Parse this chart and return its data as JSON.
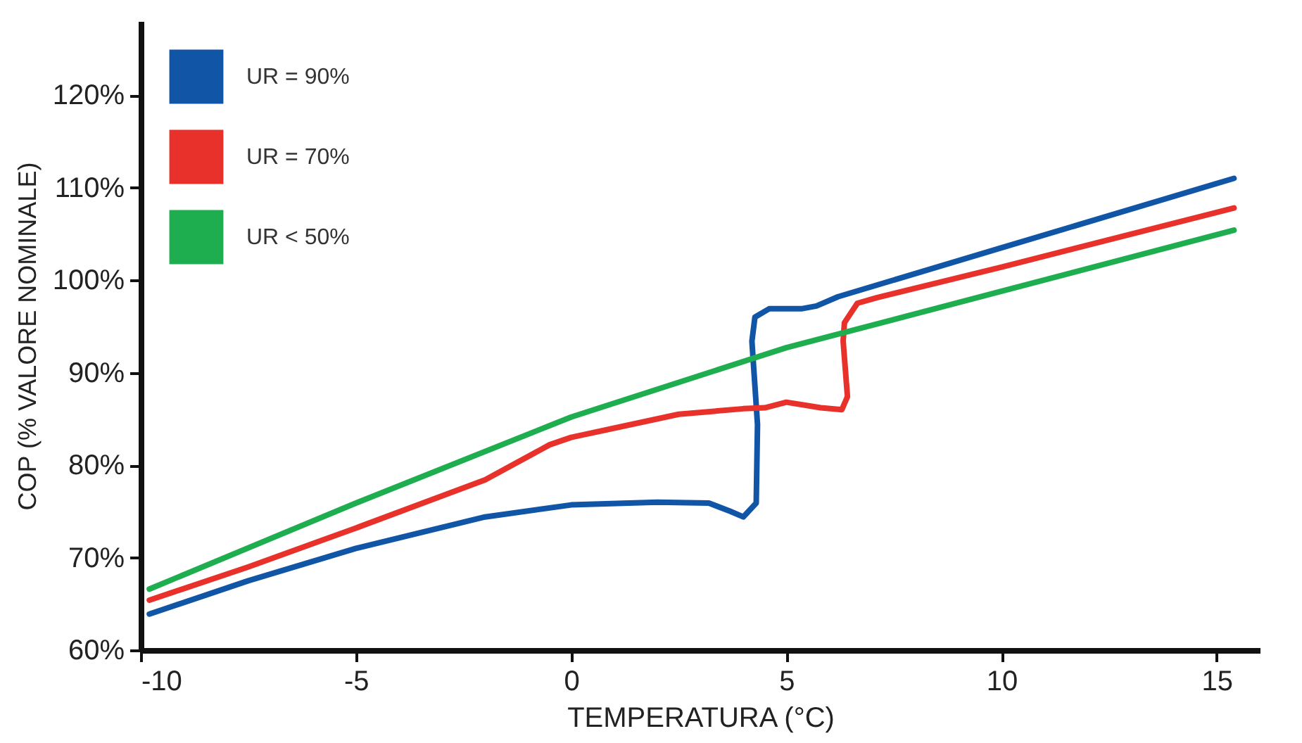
{
  "chart_data": {
    "type": "line",
    "xlabel": "TEMPERATURA (°C)",
    "ylabel": "COP (% VALORE NOMINALE)",
    "xlim": [
      -10,
      16
    ],
    "xticks": [
      -10,
      -5,
      0,
      5,
      10,
      15
    ],
    "ylim": [
      60,
      128
    ],
    "yticks": [
      {
        "value": 60,
        "label": "60%"
      },
      {
        "value": 70,
        "label": "70%"
      },
      {
        "value": 80,
        "label": "80%"
      },
      {
        "value": 90,
        "label": "90%"
      },
      {
        "value": 100,
        "label": "100%"
      },
      {
        "value": 110,
        "label": "110%"
      },
      {
        "value": 120,
        "label": "120%"
      }
    ],
    "grid": false,
    "legend": "top left",
    "line_style": "solid",
    "series": [
      {
        "name": "UR = 90%",
        "color": "#1155a6",
        "x": [
          -9.8,
          -7.5,
          -5,
          -2,
          0,
          2,
          3.2,
          3.7,
          4,
          4.3,
          4.33,
          4.2,
          4.27,
          4.6,
          5.35,
          5.7,
          6.2,
          10,
          15.4
        ],
        "values": [
          63.9,
          67.5,
          71,
          74.4,
          75.7,
          76,
          75.9,
          75,
          74.4,
          75.9,
          84.4,
          93.4,
          96,
          96.9,
          96.9,
          97.2,
          98.2,
          103.5,
          111
        ]
      },
      {
        "name": "UR = 70%",
        "color": "#e8312a",
        "x": [
          -9.8,
          -7.5,
          -5,
          -2,
          -0.5,
          0,
          1,
          2.5,
          4,
          4.5,
          5,
          5.8,
          6.29,
          6.42,
          6.32,
          6.35,
          6.65,
          7.1,
          10,
          15.4
        ],
        "values": [
          65.4,
          69,
          73.2,
          78.4,
          82.2,
          83,
          84,
          85.5,
          86.1,
          86.2,
          86.8,
          86.2,
          86,
          87.4,
          93.4,
          95.4,
          97.5,
          98.1,
          101.4,
          107.8
        ]
      },
      {
        "name": "UR < 50%",
        "color": "#1fae4f",
        "x": [
          -9.8,
          -5,
          0,
          5,
          10,
          15.4
        ],
        "values": [
          66.6,
          75.9,
          85.2,
          92.7,
          98.8,
          105.4
        ]
      }
    ]
  }
}
